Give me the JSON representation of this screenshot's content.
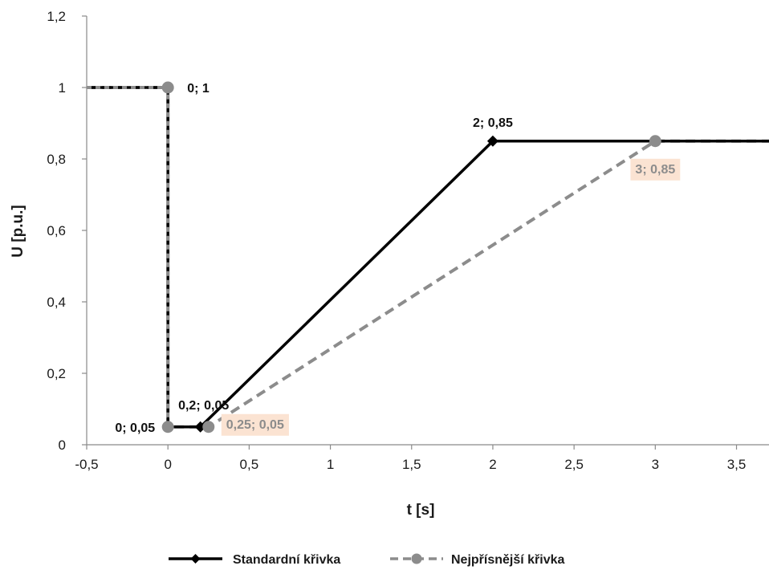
{
  "chart_data": {
    "type": "line",
    "xlabel": "t [s]",
    "ylabel": "U [p.u.]",
    "xlim": [
      -0.5,
      3.7
    ],
    "ylim": [
      0,
      1.2
    ],
    "x_ticks": [
      "-0,5",
      "0",
      "0,5",
      "1",
      "1,5",
      "2",
      "2,5",
      "3",
      "3,5"
    ],
    "x_tick_values": [
      -0.5,
      0,
      0.5,
      1,
      1.5,
      2,
      2.5,
      3,
      3.5
    ],
    "y_ticks": [
      "0",
      "0,2",
      "0,4",
      "0,6",
      "0,8",
      "1",
      "1,2"
    ],
    "y_tick_values": [
      0,
      0.2,
      0.4,
      0.6,
      0.8,
      1.0,
      1.2
    ],
    "grid": false,
    "legend_position": "bottom",
    "series": [
      {
        "name": "Standardní křivka",
        "color": "#000000",
        "style": "solid",
        "marker": "diamond",
        "points": [
          [
            -0.5,
            1
          ],
          [
            0,
            1
          ],
          [
            0,
            0.05
          ],
          [
            0.2,
            0.05
          ],
          [
            2,
            0.85
          ],
          [
            3.7,
            0.85
          ]
        ],
        "marked_points": [
          [
            0.2,
            0.05
          ],
          [
            2,
            0.85
          ]
        ]
      },
      {
        "name": "Nejpřísnější křivka",
        "color": "#8c8c8c",
        "style": "dashed",
        "marker": "circle",
        "points": [
          [
            -0.5,
            1
          ],
          [
            0,
            1
          ],
          [
            0,
            0.05
          ],
          [
            0.25,
            0.05
          ],
          [
            3,
            0.85
          ],
          [
            3.7,
            0.85
          ]
        ],
        "marked_points": [
          [
            0,
            1
          ],
          [
            0,
            0.05
          ],
          [
            0.25,
            0.05
          ],
          [
            3,
            0.85
          ]
        ]
      }
    ],
    "annotations": [
      {
        "text": "0; 1",
        "x": 0,
        "y": 1,
        "style": "black",
        "anchor": "right"
      },
      {
        "text": "0; 0,05",
        "x": 0,
        "y": 0.05,
        "style": "black",
        "anchor": "left"
      },
      {
        "text": "0,2; 0,05",
        "x": 0.2,
        "y": 0.05,
        "style": "black",
        "anchor": "above"
      },
      {
        "text": "0,25; 0,05",
        "x": 0.25,
        "y": 0.05,
        "style": "gray-boxed",
        "anchor": "right"
      },
      {
        "text": "2; 0,85",
        "x": 2,
        "y": 0.85,
        "style": "black",
        "anchor": "above"
      },
      {
        "text": "3; 0,85",
        "x": 3,
        "y": 0.85,
        "style": "gray-boxed",
        "anchor": "below"
      }
    ]
  }
}
